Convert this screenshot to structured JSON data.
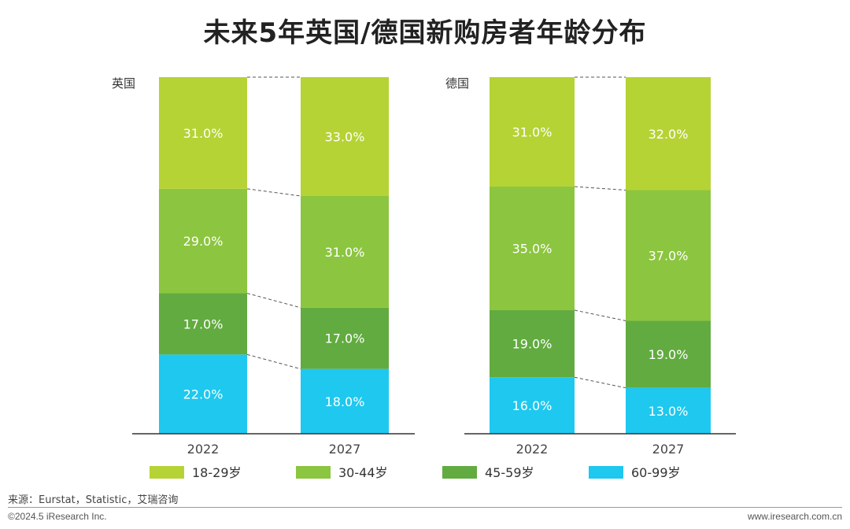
{
  "title": "未来5年英国/德国新购房者年龄分布",
  "colors": {
    "18-29": "#b5d334",
    "30-44": "#8cc53f",
    "45-59": "#62ab40",
    "60-99": "#1ec8ef"
  },
  "chart_data": [
    {
      "type": "bar",
      "stacked": true,
      "label": "英国",
      "categories": [
        "2022",
        "2027"
      ],
      "series": [
        {
          "name": "60-99岁",
          "values": [
            22.0,
            18.0
          ]
        },
        {
          "name": "45-59岁",
          "values": [
            17.0,
            17.0
          ]
        },
        {
          "name": "30-44岁",
          "values": [
            29.0,
            31.0
          ]
        },
        {
          "name": "18-29岁",
          "values": [
            31.0,
            33.0
          ]
        }
      ]
    },
    {
      "type": "bar",
      "stacked": true,
      "label": "德国",
      "categories": [
        "2022",
        "2027"
      ],
      "series": [
        {
          "name": "60-99岁",
          "values": [
            16.0,
            13.0
          ]
        },
        {
          "name": "45-59岁",
          "values": [
            19.0,
            19.0
          ]
        },
        {
          "name": "30-44岁",
          "values": [
            35.0,
            37.0
          ]
        },
        {
          "name": "18-29岁",
          "values": [
            31.0,
            32.0
          ]
        }
      ]
    }
  ],
  "legend": [
    {
      "key": "18-29",
      "label": "18-29岁"
    },
    {
      "key": "30-44",
      "label": "30-44岁"
    },
    {
      "key": "45-59",
      "label": "45-59岁"
    },
    {
      "key": "60-99",
      "label": "60-99岁"
    }
  ],
  "source": "来源：Eurstat，Statistic，艾瑞咨询",
  "copyright": "©2024.5 iResearch Inc.",
  "website": "www.iresearch.com.cn"
}
